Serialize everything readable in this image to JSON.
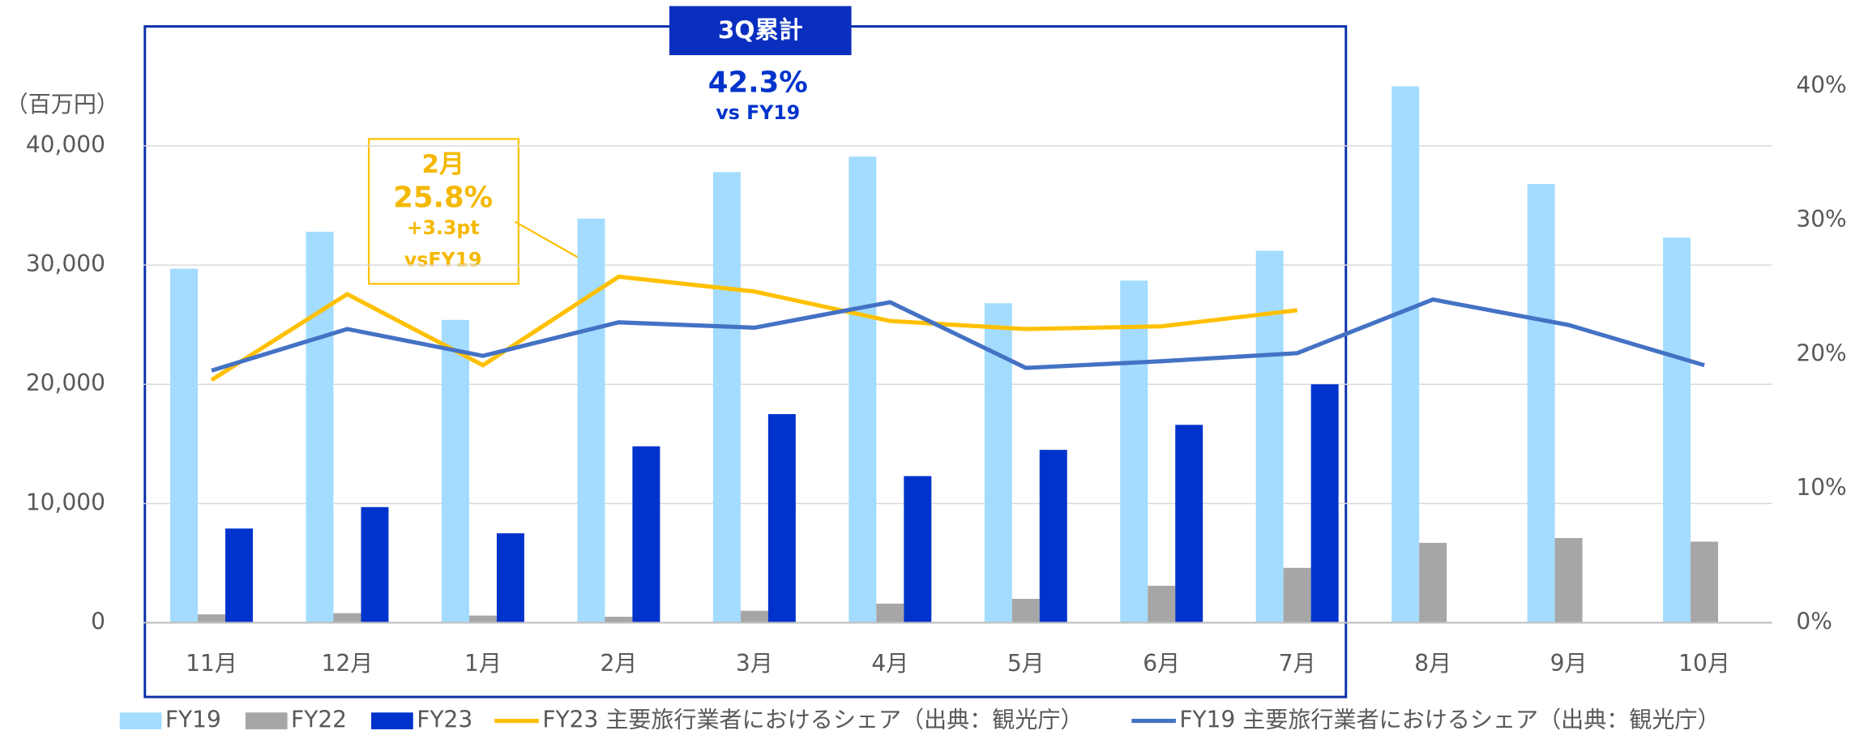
{
  "chart_data": {
    "type": "bar",
    "unit_label": "（百万円）",
    "categories": [
      "11月",
      "12月",
      "1月",
      "2月",
      "3月",
      "4月",
      "5月",
      "6月",
      "7月",
      "8月",
      "9月",
      "10月"
    ],
    "series": [
      {
        "name": "FY19",
        "type": "bar",
        "color": "#a3dcff",
        "values": [
          29700,
          32800,
          25400,
          33900,
          37800,
          39100,
          26800,
          28700,
          31200,
          45000,
          36800,
          32300
        ]
      },
      {
        "name": "FY22",
        "type": "bar",
        "color": "#a6a6a6",
        "values": [
          700,
          800,
          600,
          500,
          1000,
          1600,
          2000,
          3100,
          4600,
          6700,
          7100,
          6800
        ]
      },
      {
        "name": "FY23",
        "type": "bar",
        "color": "#0033cc",
        "values": [
          7900,
          9700,
          7500,
          14800,
          17500,
          12300,
          14500,
          16600,
          20000,
          null,
          null,
          null
        ]
      },
      {
        "name": "FY23 主要旅行業者におけるシェア（出典：観光庁）",
        "type": "line",
        "axis": "y2",
        "color": "#ffc000",
        "values": [
          18.1,
          24.5,
          19.2,
          25.8,
          24.7,
          22.5,
          21.9,
          22.1,
          23.3,
          null,
          null,
          null
        ]
      },
      {
        "name": "FY19 主要旅行業者におけるシェア（出典：観光庁）",
        "type": "line",
        "axis": "y2",
        "color": "#4472c4",
        "values": [
          18.8,
          21.9,
          19.9,
          22.4,
          22.0,
          23.9,
          19.0,
          19.5,
          20.1,
          24.1,
          22.2,
          19.2
        ]
      }
    ],
    "ylim": [
      0,
      45000
    ],
    "yticks": [
      0,
      {
        "value": 10000,
        "label": "10,000"
      },
      {
        "value": 20000,
        "label": "20,000"
      },
      {
        "value": 30000,
        "label": "30,000"
      },
      {
        "value": 40000,
        "label": "40,000"
      }
    ],
    "y2lim": [
      0,
      40
    ],
    "y2ticks": [
      {
        "value": 0,
        "label": "0%"
      },
      {
        "value": 10,
        "label": "10%"
      },
      {
        "value": 20,
        "label": "20%"
      },
      {
        "value": 30,
        "label": "30%"
      },
      {
        "value": 40,
        "label": "40%"
      }
    ],
    "grid": true,
    "legend": "bottom",
    "annotations": {
      "period": "3Q累計",
      "period_value": "42.3%",
      "period_note": "vs FY19",
      "callout_month": "2月",
      "callout_value": "25.8%",
      "callout_diff": "+3.3pt",
      "callout_note": "vsFY19"
    }
  }
}
